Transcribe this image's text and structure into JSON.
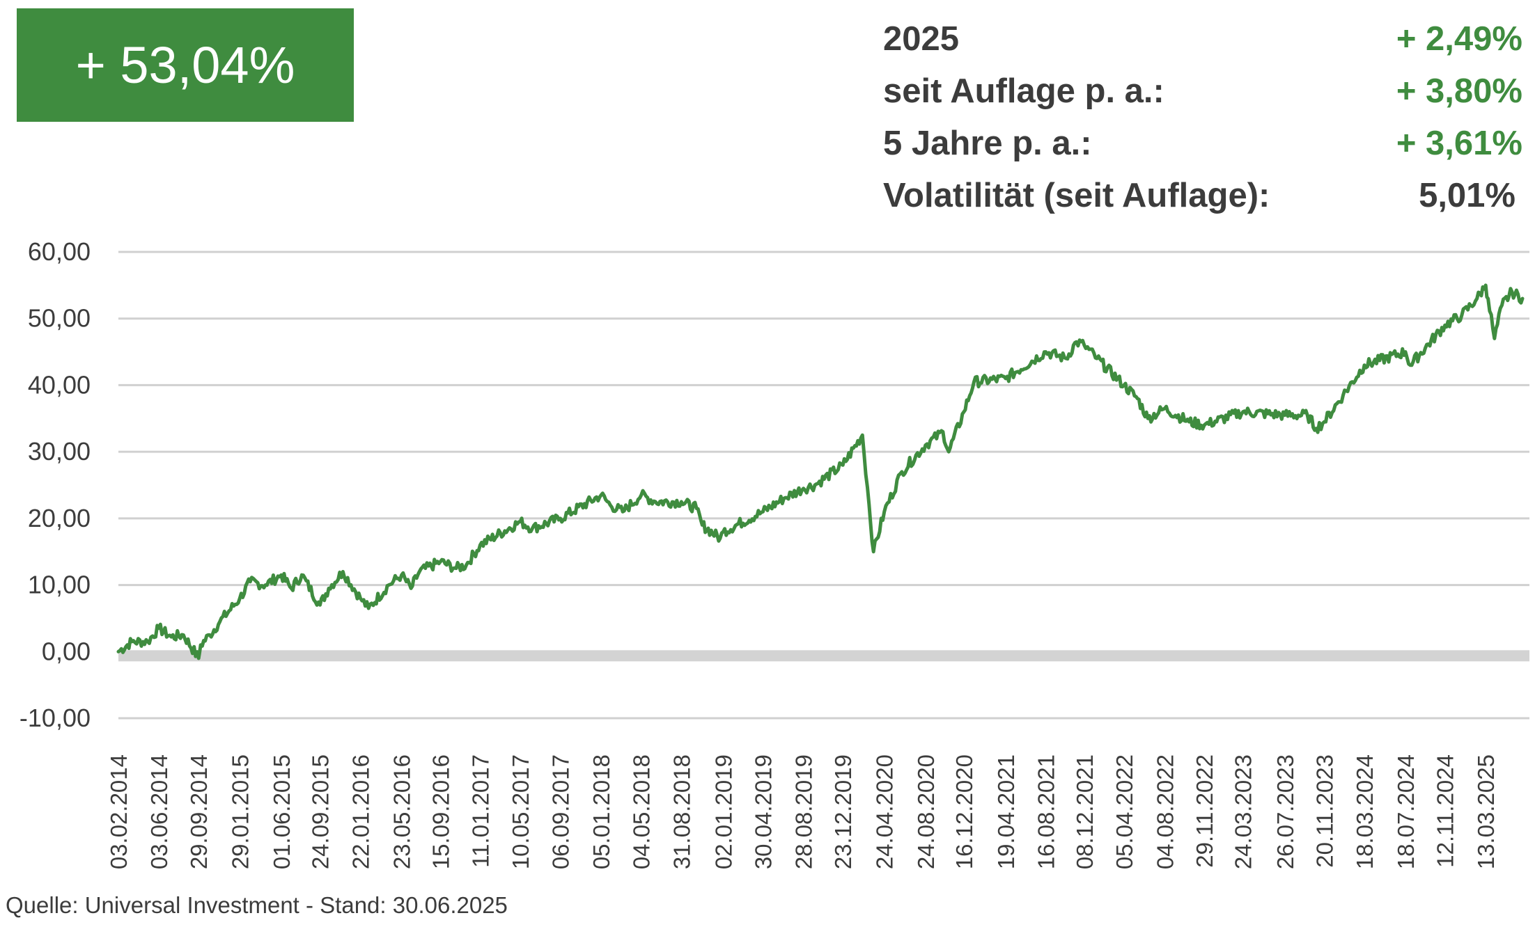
{
  "headline": {
    "value": "+ 53,04%"
  },
  "stats": [
    {
      "label": "2025",
      "value": "+ 2,49%",
      "positive": true
    },
    {
      "label": "seit Auflage p. a.:",
      "value": "+ 3,80%",
      "positive": true
    },
    {
      "label": "5 Jahre p. a.:",
      "value": "+ 3,61%",
      "positive": true
    },
    {
      "label": "Volatilität (seit Auflage):",
      "value": "5,01%",
      "positive": false
    }
  ],
  "source": "Quelle: Universal Investment - Stand: 30.06.2025",
  "colors": {
    "accent": "#3f8c3f",
    "grid": "#d0d0d0",
    "zero_band": "#d3d3d3",
    "text": "#3c3c3c"
  },
  "chart_data": {
    "type": "line",
    "title": "",
    "xlabel": "",
    "ylabel": "",
    "ylim": [
      -10,
      60
    ],
    "yticks": [
      -10,
      0,
      10,
      20,
      30,
      40,
      50,
      60
    ],
    "ytick_labels": [
      "-10,00",
      "0,00",
      "10,00",
      "20,00",
      "30,00",
      "40,00",
      "50,00",
      "60,00"
    ],
    "xticks": [
      "03.02.2014",
      "03.06.2014",
      "29.09.2014",
      "29.01.2015",
      "01.06.2015",
      "24.09.2015",
      "22.01.2016",
      "23.05.2016",
      "15.09.2016",
      "11.01.2017",
      "10.05.2017",
      "06.09.2017",
      "05.01.2018",
      "04.05.2018",
      "31.08.2018",
      "02.01.2019",
      "30.04.2019",
      "28.08.2019",
      "23.12.2019",
      "24.04.2020",
      "24.08.2020",
      "16.12.2020",
      "19.04.2021",
      "16.08.2021",
      "08.12.2021",
      "05.04.2022",
      "04.08.2022",
      "29.11.2022",
      "24.03.2023",
      "26.07.2023",
      "20.11.2023",
      "18.03.2024",
      "18.07.2024",
      "12.11.2024",
      "13.03.2025"
    ],
    "grid": true,
    "legend": "none",
    "series": [
      {
        "x": [
          "03.02.2014",
          "15.03.2014",
          "01.05.2014",
          "03.06.2014",
          "10.07.2014",
          "15.08.2014",
          "29.09.2014",
          "05.10.2014",
          "01.11.2014",
          "01.12.2014",
          "29.01.2015",
          "01.03.2015",
          "15.04.2015",
          "01.06.2015",
          "01.07.2015",
          "01.08.2015",
          "24.09.2015",
          "20.10.2015",
          "01.12.2015",
          "22.01.2016",
          "15.02.2016",
          "15.04.2016",
          "23.05.2016",
          "20.06.2016",
          "15.07.2016",
          "15.09.2016",
          "01.11.2016",
          "01.12.2016",
          "11.01.2017",
          "10.05.2017",
          "15.06.2017",
          "06.09.2017",
          "05.01.2018",
          "01.02.2018",
          "10.03.2018",
          "04.05.2018",
          "15.06.2018",
          "31.08.2018",
          "15.10.2018",
          "01.11.2018",
          "24.12.2018",
          "02.01.2019",
          "30.04.2019",
          "01.07.2019",
          "28.08.2019",
          "01.10.2019",
          "23.12.2019",
          "19.02.2020",
          "10.03.2020",
          "23.03.2020",
          "24.04.2020",
          "15.06.2020",
          "24.08.2020",
          "15.10.2020",
          "01.11.2020",
          "16.12.2020",
          "15.01.2021",
          "19.04.2021",
          "16.08.2021",
          "15.10.2021",
          "15.11.2021",
          "08.12.2021",
          "15.01.2022",
          "05.04.2022",
          "15.05.2022",
          "15.06.2022",
          "04.08.2022",
          "15.10.2022",
          "29.11.2022",
          "24.03.2023",
          "26.07.2023",
          "01.10.2023",
          "27.10.2023",
          "20.11.2023",
          "15.01.2024",
          "18.03.2024",
          "18.07.2024",
          "01.08.2024",
          "12.11.2024",
          "01.01.2025",
          "15.02.2025",
          "13.03.2025",
          "20.03.2025",
          "08.04.2025",
          "30.04.2025",
          "30.05.2025",
          "30.06.2025"
        ],
        "values": [
          0.0,
          1.5,
          1.5,
          3.5,
          2.2,
          2.5,
          -1.0,
          1.0,
          2.5,
          4.5,
          8.0,
          10.5,
          10.0,
          11.5,
          9.5,
          11.5,
          7.0,
          9.5,
          12.0,
          8.0,
          6.5,
          10.0,
          11.5,
          9.5,
          12.0,
          13.5,
          12.5,
          13.0,
          16.0,
          19.5,
          18.5,
          20.0,
          23.5,
          22.0,
          21.0,
          23.5,
          22.5,
          22.5,
          21.5,
          19.0,
          17.0,
          18.0,
          21.0,
          23.0,
          24.5,
          25.0,
          28.0,
          32.5,
          22.0,
          15.0,
          21.0,
          27.0,
          31.0,
          33.0,
          30.0,
          36.0,
          40.5,
          41.0,
          45.0,
          44.0,
          46.5,
          46.0,
          44.0,
          40.0,
          38.0,
          35.0,
          36.5,
          34.5,
          34.0,
          36.0,
          35.5,
          35.5,
          33.5,
          34.5,
          38.5,
          43.0,
          45.0,
          43.0,
          49.0,
          50.5,
          53.0,
          55.0,
          53.0,
          47.0,
          52.0,
          54.0,
          53.0
        ]
      }
    ]
  }
}
